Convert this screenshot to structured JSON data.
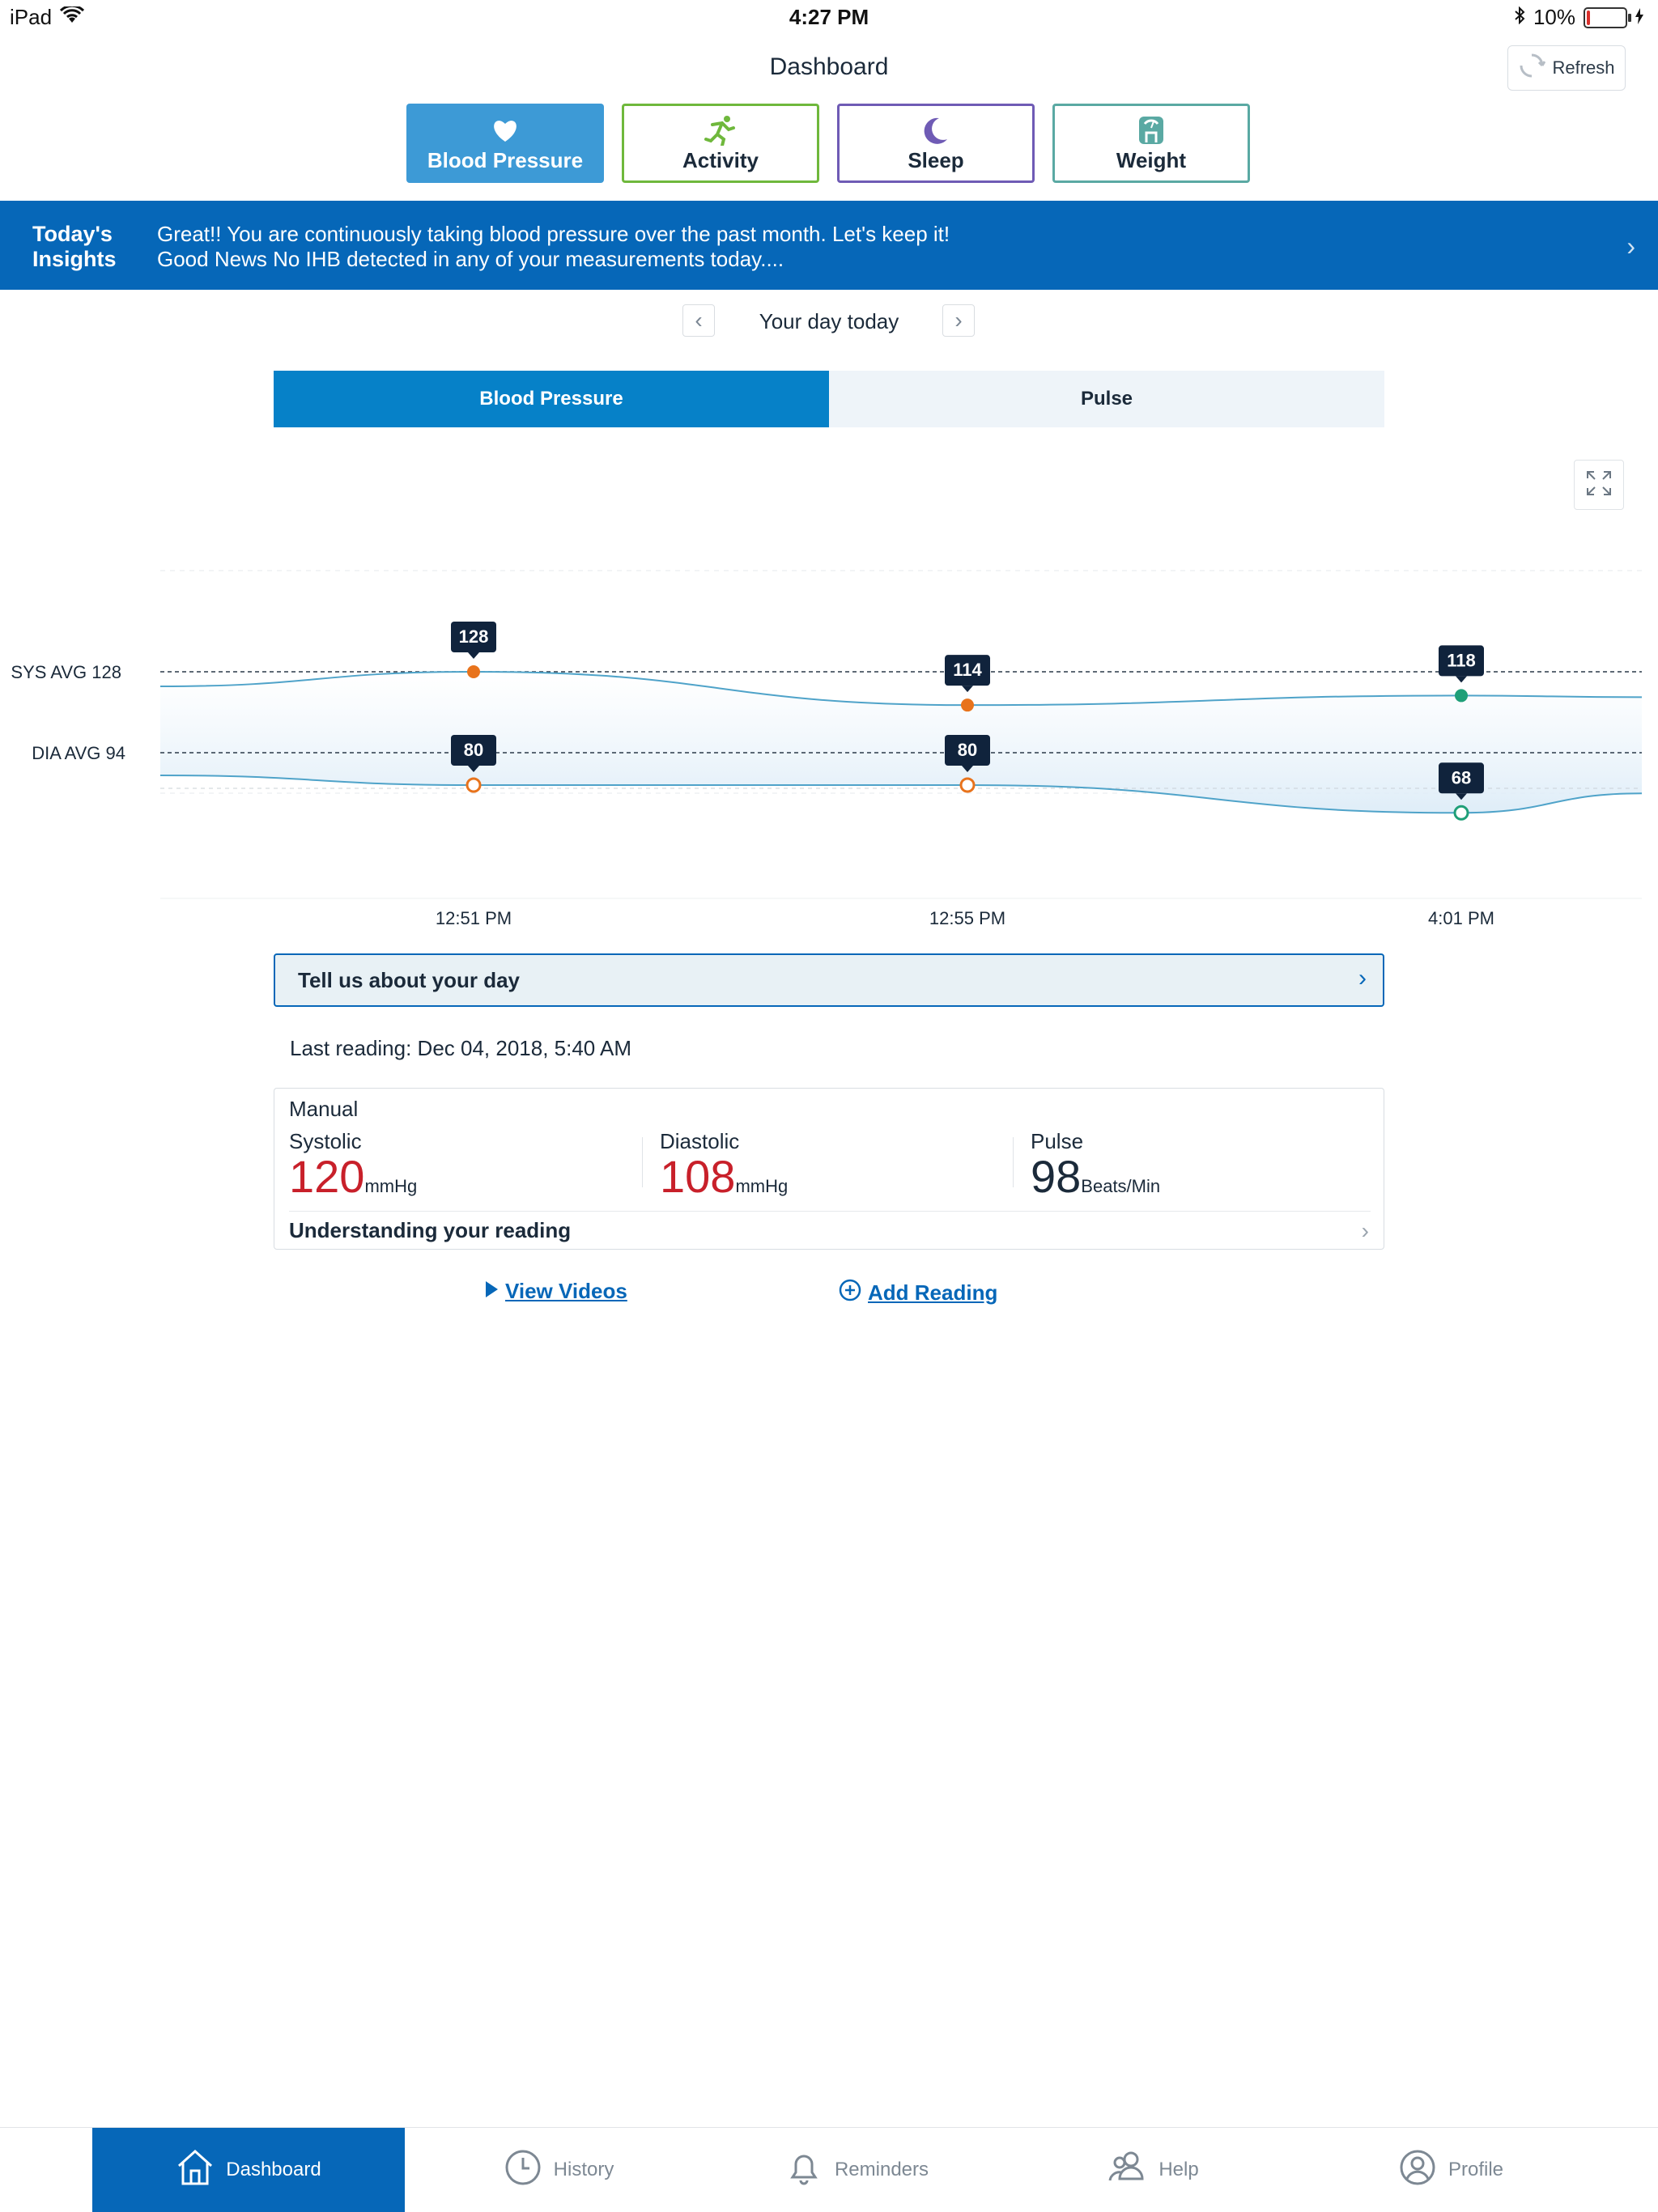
{
  "status_bar": {
    "device": "iPad",
    "time": "4:27 PM",
    "battery": "10%",
    "battery_level": 0.1
  },
  "header": {
    "title": "Dashboard",
    "refresh_label": "Refresh"
  },
  "categories": [
    {
      "label": "Blood Pressure",
      "icon": "heart-icon",
      "color": "#3d9ad6",
      "active": true
    },
    {
      "label": "Activity",
      "icon": "runner-icon",
      "color": "#6fb83c",
      "active": false
    },
    {
      "label": "Sleep",
      "icon": "moon-icon",
      "color": "#6f5bb5",
      "active": false
    },
    {
      "label": "Weight",
      "icon": "scale-icon",
      "color": "#5aa9a3",
      "active": false
    }
  ],
  "insights": {
    "label_line1": "Today's",
    "label_line2": "Insights",
    "line1": "Great!! You are continuously taking blood pressure over the past month. Let's keep it!",
    "line2": "Good News No IHB detected in any of your measurements today...."
  },
  "day_nav": {
    "label": "Your day today"
  },
  "segments": {
    "left": "Blood Pressure",
    "right": "Pulse"
  },
  "chart_data": {
    "type": "line",
    "x": [
      "12:51 PM",
      "12:55 PM",
      "4:01 PM"
    ],
    "series": [
      {
        "name": "Systolic",
        "values": [
          128,
          114,
          118
        ],
        "colors": [
          "#e8731c",
          "#e8731c",
          "#1f9f78"
        ],
        "filled": true
      },
      {
        "name": "Diastolic",
        "values": [
          80,
          80,
          68
        ],
        "colors": [
          "#e8731c",
          "#e8731c",
          "#1f9f78"
        ],
        "filled": false
      }
    ],
    "reference_lines": [
      {
        "label": "SYS AVG 128",
        "value": 128
      },
      {
        "label": "DIA AVG 94",
        "value": 94
      }
    ],
    "grid": false
  },
  "tell_us": {
    "label": "Tell us about your day"
  },
  "last_reading": {
    "text": "Last reading: Dec 04, 2018, 5:40 AM",
    "source": "Manual",
    "systolic": {
      "label": "Systolic",
      "value": "120",
      "unit": "mmHg",
      "color": "#c8202a"
    },
    "diastolic": {
      "label": "Diastolic",
      "value": "108",
      "unit": "mmHg",
      "color": "#c8202a"
    },
    "pulse": {
      "label": "Pulse",
      "value": "98",
      "unit": "Beats/Min",
      "color": "#1b2a3a"
    },
    "understanding": "Understanding your reading"
  },
  "links": {
    "videos": "View Videos",
    "add_reading": "Add Reading"
  },
  "tabbar": [
    {
      "label": "Dashboard",
      "icon": "home-icon",
      "active": true
    },
    {
      "label": "History",
      "icon": "clock-icon",
      "active": false
    },
    {
      "label": "Reminders",
      "icon": "bell-icon",
      "active": false
    },
    {
      "label": "Help",
      "icon": "people-icon",
      "active": false
    },
    {
      "label": "Profile",
      "icon": "person-icon",
      "active": false
    }
  ]
}
